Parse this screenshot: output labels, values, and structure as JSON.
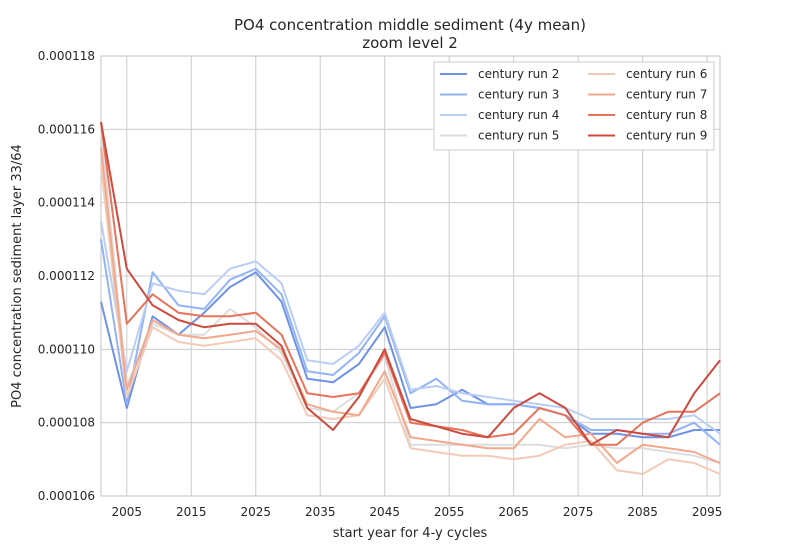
{
  "chart_data": {
    "type": "line",
    "title": "PO4 concentration middle sediment (4y mean)",
    "subtitle": "zoom level 2",
    "xlabel": "start year for 4-y cycles",
    "ylabel": "PO4 concentration sediment layer 33/64",
    "xlim": [
      2001,
      2097
    ],
    "ylim": [
      0.000106,
      0.000118
    ],
    "xticks": [
      2005,
      2015,
      2025,
      2035,
      2045,
      2055,
      2065,
      2075,
      2085,
      2095
    ],
    "yticks": [
      "0.000106",
      "0.000108",
      "0.000110",
      "0.000112",
      "0.000114",
      "0.000116",
      "0.000118"
    ],
    "ytick_values": [
      0.000106,
      0.000108,
      0.00011,
      0.000112,
      0.000114,
      0.000116,
      0.000118
    ],
    "grid": true,
    "legend_position": "top-right",
    "x": [
      2001,
      2005,
      2009,
      2013,
      2017,
      2021,
      2025,
      2029,
      2033,
      2037,
      2041,
      2045,
      2049,
      2053,
      2057,
      2061,
      2065,
      2069,
      2073,
      2077,
      2081,
      2085,
      2089,
      2093,
      2097
    ],
    "series": [
      {
        "name": "century run 2",
        "color": "#6f92e5",
        "values": [
          0.0001113,
          0.0001084,
          0.0001109,
          0.0001104,
          0.000111,
          0.0001117,
          0.0001121,
          0.0001113,
          0.0001092,
          0.0001091,
          0.0001096,
          0.0001106,
          0.0001084,
          0.0001085,
          0.0001089,
          0.0001085,
          0.0001085,
          0.0001084,
          0.0001082,
          0.0001077,
          0.0001077,
          0.0001076,
          0.0001076,
          0.0001078,
          0.0001078
        ]
      },
      {
        "name": "century run 3",
        "color": "#92b4f7",
        "values": [
          0.000113,
          0.0001085,
          0.0001121,
          0.0001112,
          0.0001111,
          0.0001119,
          0.0001122,
          0.0001115,
          0.0001094,
          0.0001093,
          0.0001099,
          0.0001109,
          0.0001088,
          0.0001092,
          0.0001086,
          0.0001085,
          0.0001085,
          0.0001084,
          0.0001082,
          0.0001078,
          0.0001078,
          0.0001077,
          0.0001077,
          0.000108,
          0.0001074
        ]
      },
      {
        "name": "century run 4",
        "color": "#b9cdf5",
        "values": [
          0.0001135,
          0.0001094,
          0.0001118,
          0.0001116,
          0.0001115,
          0.0001122,
          0.0001124,
          0.0001118,
          0.0001097,
          0.0001096,
          0.0001101,
          0.000111,
          0.0001089,
          0.000109,
          0.0001088,
          0.0001087,
          0.0001086,
          0.0001085,
          0.0001084,
          0.0001081,
          0.0001081,
          0.0001081,
          0.0001081,
          0.0001082,
          0.0001077
        ]
      },
      {
        "name": "century run 5",
        "color": "#dcdddd",
        "values": [
          0.000116,
          0.000109,
          0.0001107,
          0.0001104,
          0.0001104,
          0.0001111,
          0.0001106,
          0.0001099,
          0.0001084,
          0.0001083,
          0.0001088,
          0.0001098,
          0.0001074,
          0.0001074,
          0.0001074,
          0.0001074,
          0.0001074,
          0.0001074,
          0.0001073,
          0.0001074,
          0.0001073,
          0.0001073,
          0.0001072,
          0.0001071,
          0.0001069
        ]
      },
      {
        "name": "century run 6",
        "color": "#f2cbb7",
        "values": [
          0.000115,
          0.0001087,
          0.0001106,
          0.0001102,
          0.0001101,
          0.0001102,
          0.0001103,
          0.0001097,
          0.0001082,
          0.0001081,
          0.0001082,
          0.0001092,
          0.0001073,
          0.0001072,
          0.0001071,
          0.0001071,
          0.000107,
          0.0001071,
          0.0001074,
          0.0001075,
          0.0001067,
          0.0001066,
          0.000107,
          0.0001069,
          0.0001066
        ]
      },
      {
        "name": "century run 7",
        "color": "#f3a88b",
        "values": [
          0.0001155,
          0.0001089,
          0.0001108,
          0.0001104,
          0.0001103,
          0.0001104,
          0.0001105,
          0.00011,
          0.0001085,
          0.0001083,
          0.0001082,
          0.0001094,
          0.0001076,
          0.0001075,
          0.0001074,
          0.0001073,
          0.0001073,
          0.0001081,
          0.0001076,
          0.0001077,
          0.0001069,
          0.0001074,
          0.0001073,
          0.0001072,
          0.0001069
        ]
      },
      {
        "name": "century run 8",
        "color": "#e7745b",
        "values": [
          0.0001162,
          0.0001107,
          0.0001115,
          0.000111,
          0.0001109,
          0.0001109,
          0.000111,
          0.0001104,
          0.0001088,
          0.0001087,
          0.0001088,
          0.0001099,
          0.000108,
          0.0001079,
          0.0001078,
          0.0001076,
          0.0001077,
          0.0001084,
          0.0001082,
          0.0001074,
          0.0001074,
          0.000108,
          0.0001083,
          0.0001083,
          0.0001088
        ]
      },
      {
        "name": "century run 9",
        "color": "#cc4a3e",
        "values": [
          0.0001162,
          0.0001122,
          0.0001112,
          0.0001108,
          0.0001106,
          0.0001107,
          0.0001107,
          0.0001101,
          0.0001084,
          0.0001078,
          0.0001087,
          0.00011,
          0.0001081,
          0.0001079,
          0.0001077,
          0.0001076,
          0.0001084,
          0.0001088,
          0.0001084,
          0.0001074,
          0.0001078,
          0.0001077,
          0.0001076,
          0.0001088,
          0.0001097
        ]
      }
    ]
  }
}
